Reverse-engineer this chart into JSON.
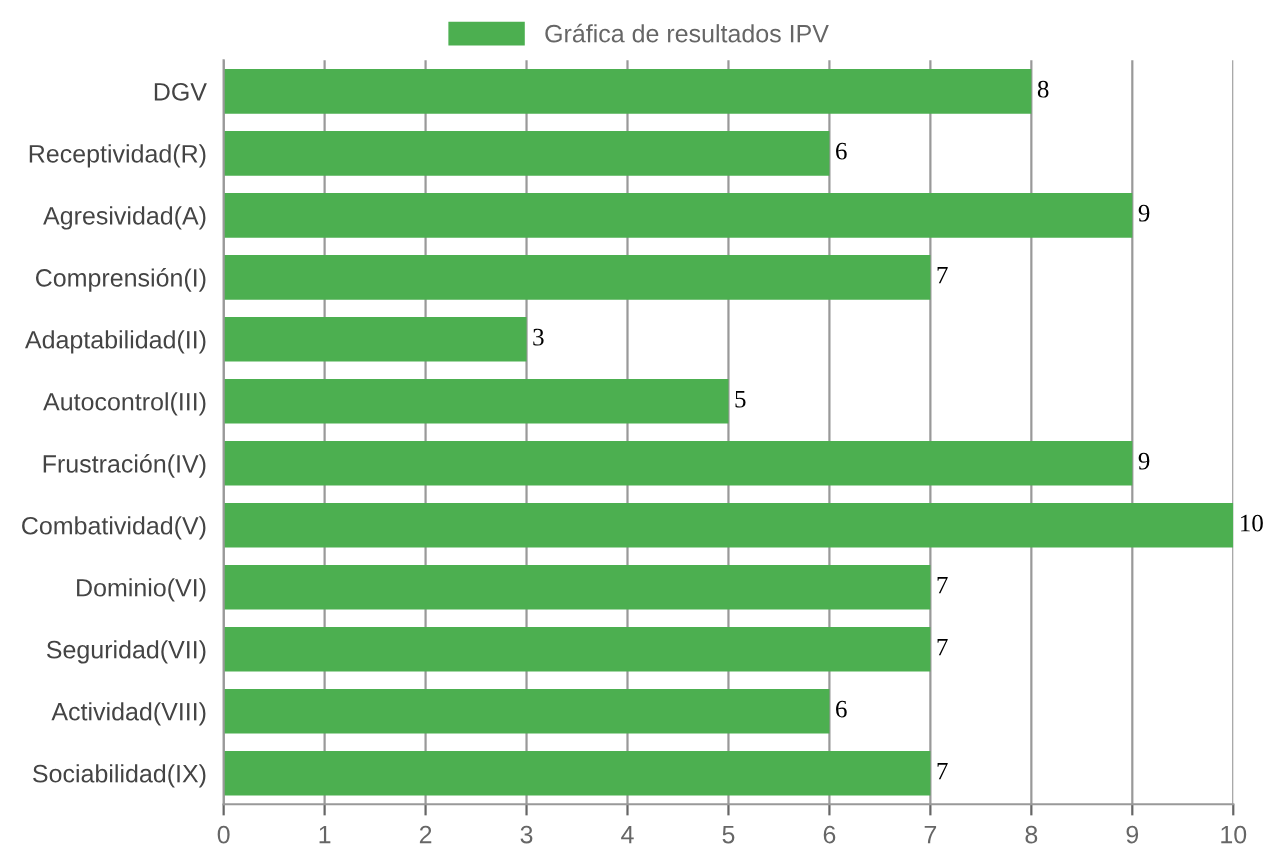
{
  "chart_data": {
    "type": "bar",
    "orientation": "horizontal",
    "categories": [
      "DGV",
      "Receptividad(R)",
      "Agresividad(A)",
      "Comprensión(I)",
      "Adaptabilidad(II)",
      "Autocontrol(III)",
      "Frustración(IV)",
      "Combatividad(V)",
      "Dominio(VI)",
      "Seguridad(VII)",
      "Actividad(VIII)",
      "Sociabilidad(IX)"
    ],
    "series": [
      {
        "name": "Gráfica de resultados IPV",
        "color": "#4caf50",
        "values": [
          8,
          6,
          9,
          7,
          3,
          5,
          9,
          10,
          7,
          7,
          6,
          7
        ]
      }
    ],
    "xlim": [
      0,
      10
    ],
    "xticks": [
      0,
      1,
      2,
      3,
      4,
      5,
      6,
      7,
      8,
      9,
      10
    ],
    "grid": "x",
    "legend": "top",
    "data_labels": true
  }
}
